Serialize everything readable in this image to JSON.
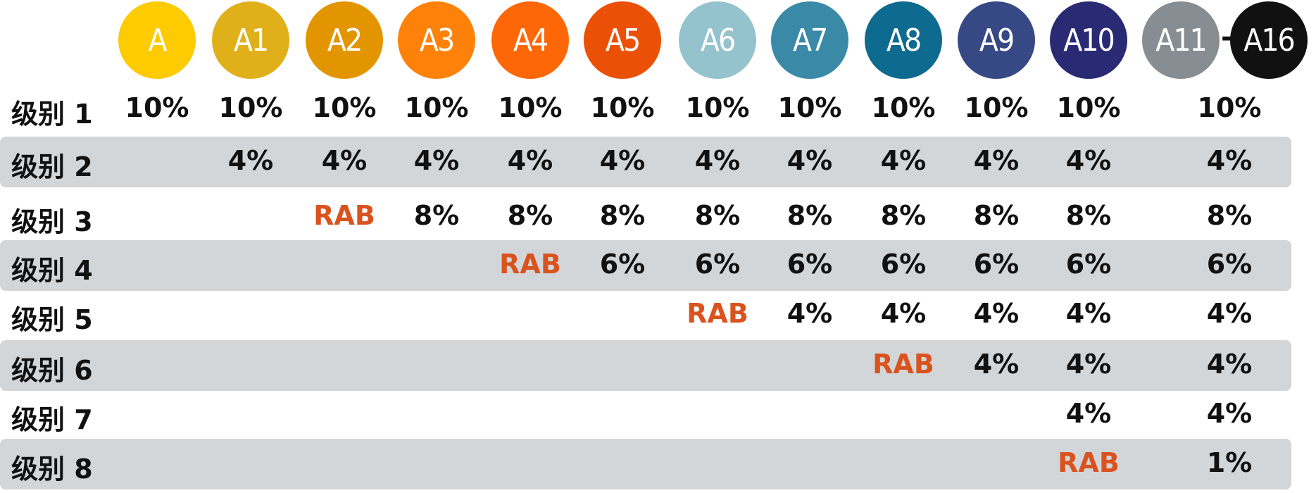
{
  "categories": [
    {
      "label": "A",
      "color": "#fecb00"
    },
    {
      "label": "A1",
      "color": "#e0b01b"
    },
    {
      "label": "A2",
      "color": "#e39500"
    },
    {
      "label": "A3",
      "color": "#fe8209"
    },
    {
      "label": "A4",
      "color": "#fe6707"
    },
    {
      "label": "A5",
      "color": "#ea5106"
    },
    {
      "label": "A6",
      "color": "#95c3cd"
    },
    {
      "label": "A7",
      "color": "#3a8aa7"
    },
    {
      "label": "A8",
      "color": "#0e6a8f"
    },
    {
      "label": "A9",
      "color": "#364984"
    },
    {
      "label": "A10",
      "color": "#292a73"
    },
    {
      "label": "A11",
      "color": "#868d93"
    },
    {
      "label": "A16",
      "color": "#111111"
    }
  ],
  "range_separator": "-",
  "rab_color": "#d9531e",
  "rows": [
    {
      "label": "级别 1",
      "values": [
        "10%",
        "10%",
        "10%",
        "10%",
        "10%",
        "10%",
        "10%",
        "10%",
        "10%",
        "10%",
        "10%",
        "10%"
      ]
    },
    {
      "label": "级别 2",
      "values": [
        "",
        "4%",
        "4%",
        "4%",
        "4%",
        "4%",
        "4%",
        "4%",
        "4%",
        "4%",
        "4%",
        "4%"
      ]
    },
    {
      "label": "级别 3",
      "values": [
        "",
        "",
        "RAB",
        "8%",
        "8%",
        "8%",
        "8%",
        "8%",
        "8%",
        "8%",
        "8%",
        "8%"
      ]
    },
    {
      "label": "级别 4",
      "values": [
        "",
        "",
        "",
        "",
        "RAB",
        "6%",
        "6%",
        "6%",
        "6%",
        "6%",
        "6%",
        "6%"
      ]
    },
    {
      "label": "级别 5",
      "values": [
        "",
        "",
        "",
        "",
        "",
        "",
        "RAB",
        "4%",
        "4%",
        "4%",
        "4%",
        "4%"
      ]
    },
    {
      "label": "级别 6",
      "values": [
        "",
        "",
        "",
        "",
        "",
        "",
        "",
        "",
        "RAB",
        "4%",
        "4%",
        "4%"
      ]
    },
    {
      "label": "级别 7",
      "values": [
        "",
        "",
        "",
        "",
        "",
        "",
        "",
        "",
        "",
        "",
        "4%",
        "4%"
      ]
    },
    {
      "label": "级别 8",
      "values": [
        "",
        "",
        "",
        "",
        "",
        "",
        "",
        "",
        "",
        "",
        "RAB",
        "1%"
      ]
    }
  ]
}
